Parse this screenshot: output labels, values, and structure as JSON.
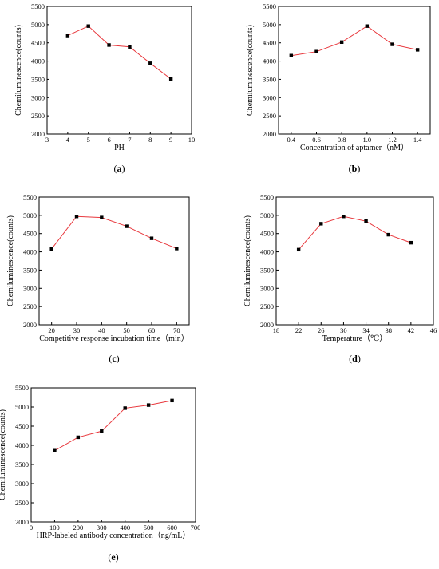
{
  "chart_data": [
    {
      "type": "line",
      "panel_label": "(a)",
      "xlabel": "PH",
      "ylabel": "Chemiluminescence(counts)",
      "xlim": [
        3,
        10
      ],
      "xticks": [
        3,
        4,
        5,
        6,
        7,
        8,
        9,
        10
      ],
      "ylim": [
        2000,
        5500
      ],
      "yticks": [
        2000,
        2500,
        3000,
        3500,
        4000,
        4500,
        5000,
        5500
      ],
      "grid": false,
      "series": [
        {
          "x": [
            4,
            5,
            6,
            7,
            8,
            9
          ],
          "y": [
            4700,
            4960,
            4440,
            4390,
            3940,
            3510
          ],
          "line_color": "#e8383d",
          "marker_color": "#000000",
          "marker": "square"
        }
      ]
    },
    {
      "type": "line",
      "panel_label": "(b)",
      "xlabel": "Concentration of aptamer（nM）",
      "ylabel": "Chemiluminescence(counts)",
      "xlim": [
        0.3,
        1.5
      ],
      "xticks": [
        "0.4",
        "0.6",
        "0.8",
        "1.0",
        "1.2",
        "1.4"
      ],
      "xtick_values": [
        0.4,
        0.6,
        0.8,
        1.0,
        1.2,
        1.4
      ],
      "ylim": [
        2000,
        5500
      ],
      "yticks": [
        2000,
        2500,
        3000,
        3500,
        4000,
        4500,
        5000,
        5500
      ],
      "grid": false,
      "series": [
        {
          "x": [
            0.4,
            0.6,
            0.8,
            1.0,
            1.2,
            1.4
          ],
          "y": [
            4150,
            4260,
            4520,
            4960,
            4460,
            4310
          ],
          "line_color": "#e8383d",
          "marker_color": "#000000",
          "marker": "square"
        }
      ]
    },
    {
      "type": "line",
      "panel_label": "(c)",
      "xlabel": "Competitive response incubation time（min）",
      "ylabel": "Chemiluminescence(counts)",
      "xlim": [
        15,
        75
      ],
      "xticks": [
        20,
        30,
        40,
        50,
        60,
        70
      ],
      "ylim": [
        2000,
        5500
      ],
      "yticks": [
        2000,
        2500,
        3000,
        3500,
        4000,
        4500,
        5000,
        5500
      ],
      "grid": false,
      "series": [
        {
          "x": [
            20,
            30,
            40,
            50,
            60,
            70
          ],
          "y": [
            4080,
            4970,
            4940,
            4700,
            4370,
            4090
          ],
          "line_color": "#e8383d",
          "marker_color": "#000000",
          "marker": "square"
        }
      ]
    },
    {
      "type": "line",
      "panel_label": "(d)",
      "xlabel": "Temperature（℃）",
      "ylabel": "Chemiluminescence(counts)",
      "xlim": [
        18,
        46
      ],
      "xticks": [
        18,
        22,
        26,
        30,
        34,
        38,
        42,
        46
      ],
      "ylim": [
        2000,
        5500
      ],
      "yticks": [
        2000,
        2500,
        3000,
        3500,
        4000,
        4500,
        5000,
        5500
      ],
      "grid": false,
      "series": [
        {
          "x": [
            22,
            26,
            30,
            34,
            38,
            42
          ],
          "y": [
            4060,
            4770,
            4970,
            4840,
            4470,
            4250
          ],
          "line_color": "#e8383d",
          "marker_color": "#000000",
          "marker": "square"
        }
      ]
    },
    {
      "type": "line",
      "panel_label": "(e)",
      "xlabel": "HRP-labeled antibody concentration（ng/mL）",
      "ylabel": "Chemiluminescence(counts)",
      "xlim": [
        0,
        700
      ],
      "xticks": [
        0,
        100,
        200,
        300,
        400,
        500,
        600,
        700
      ],
      "ylim": [
        2000,
        5500
      ],
      "yticks": [
        2000,
        2500,
        3000,
        3500,
        4000,
        4500,
        5000,
        5500
      ],
      "grid": false,
      "series": [
        {
          "x": [
            100,
            200,
            300,
            400,
            500,
            600
          ],
          "y": [
            3860,
            4210,
            4370,
            4970,
            5050,
            5170
          ],
          "line_color": "#e8383d",
          "marker_color": "#000000",
          "marker": "square"
        }
      ]
    }
  ]
}
